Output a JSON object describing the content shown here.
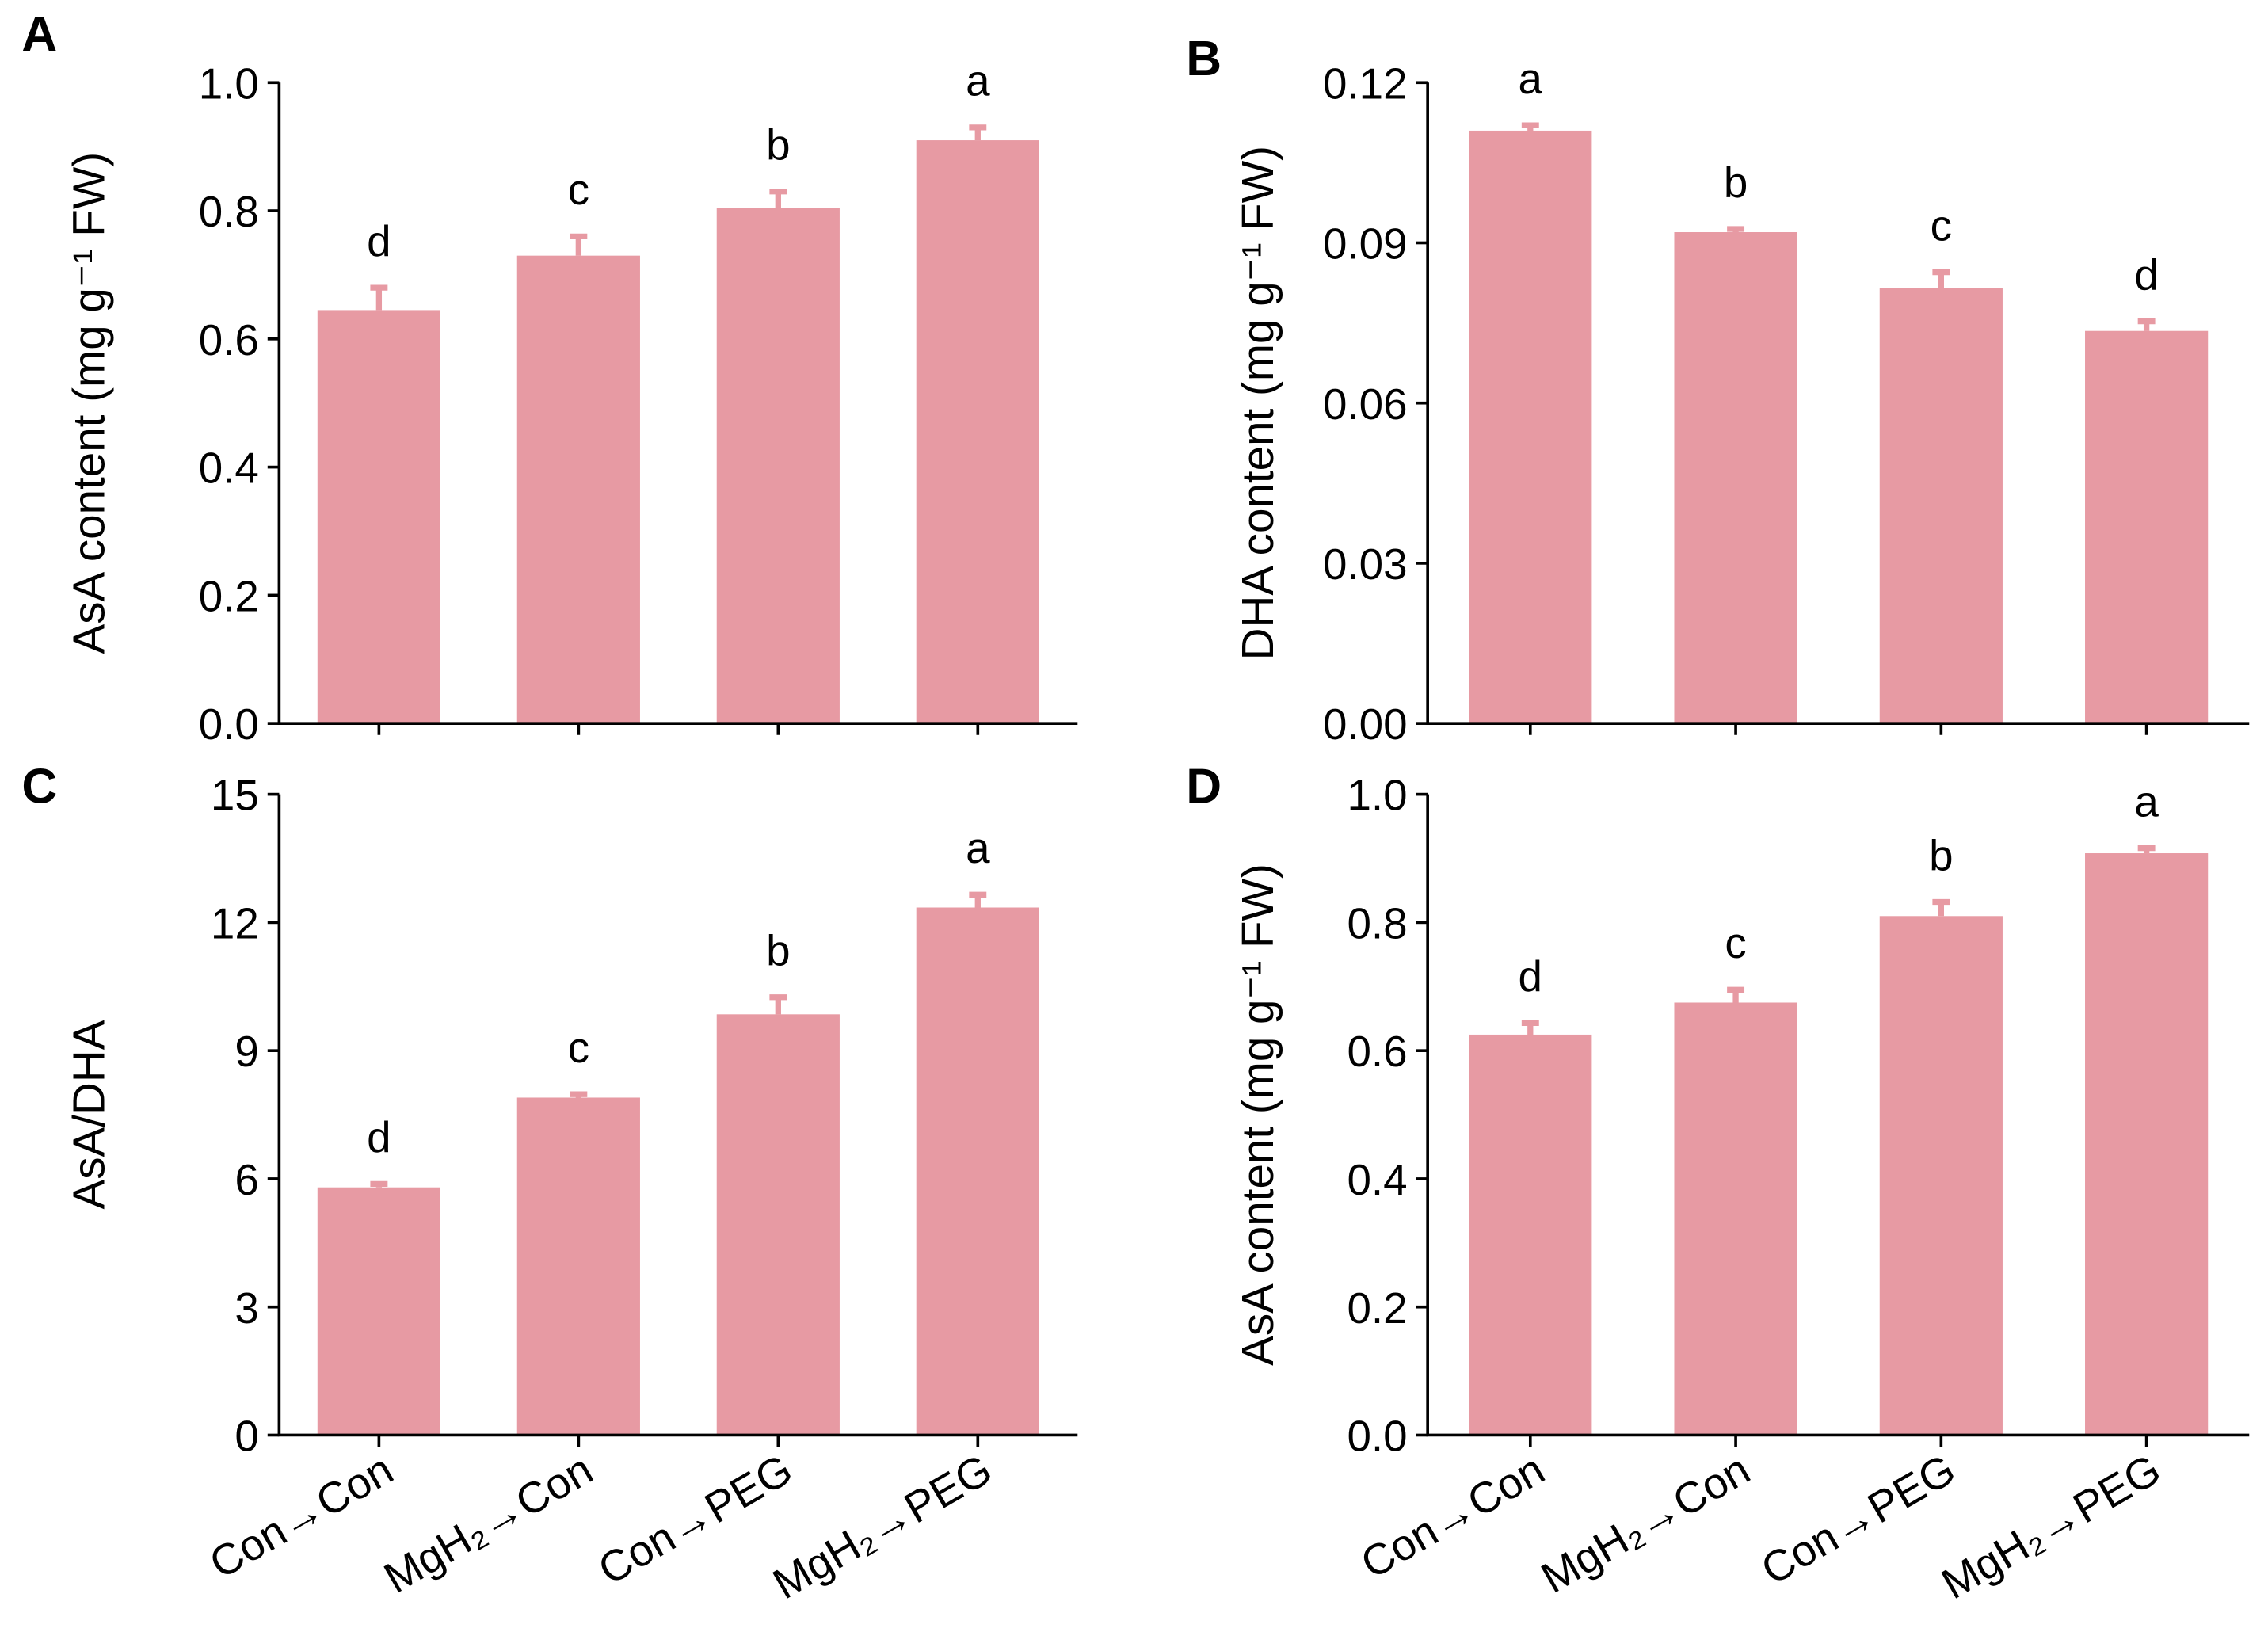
{
  "chart_data": [
    {
      "type": "bar",
      "panel": "A",
      "ylabel": "AsA content (mg g⁻¹ FW)",
      "color": "#e79aa3",
      "values": [
        0.645,
        0.73,
        0.805,
        0.91
      ],
      "errors": [
        0.035,
        0.03,
        0.025,
        0.02
      ],
      "labels": [
        "d",
        "c",
        "b",
        "a"
      ],
      "ylim": [
        0,
        1.0
      ],
      "yticks": [
        {
          "value": 0,
          "label": "0.0"
        },
        0.2,
        0.4,
        0.6,
        0.8,
        {
          "value": 1.0,
          "label": "1.0"
        }
      ]
    },
    {
      "type": "bar",
      "panel": "B",
      "ylabel": "DHA content (mg g⁻¹ FW)",
      "color": "#e79aa3",
      "values": [
        0.111,
        0.092,
        0.0815,
        0.0735
      ],
      "errors": [
        0.001,
        0.0006,
        0.003,
        0.0018
      ],
      "labels": [
        "a",
        "b",
        "c",
        "d"
      ],
      "ylim": [
        0,
        0.12
      ],
      "yticks": [
        {
          "value": 0,
          "label": "0.00"
        },
        0.03,
        0.06,
        0.09,
        0.12
      ]
    },
    {
      "type": "bar",
      "panel": "C",
      "ylabel": "AsA/DHA",
      "color": "#e79aa3",
      "categories": [
        "Con→Con",
        "MgH₂→Con",
        "Con→PEG",
        "MgH₂→PEG"
      ],
      "values": [
        5.8,
        7.9,
        9.85,
        12.35
      ],
      "errors": [
        0.08,
        0.08,
        0.4,
        0.3
      ],
      "labels": [
        "d",
        "c",
        "b",
        "a"
      ],
      "ylim": [
        0,
        15
      ],
      "yticks": [
        0,
        3,
        6,
        9,
        12,
        15
      ]
    },
    {
      "type": "bar",
      "panel": "D",
      "ylabel": "AsA content (mg g⁻¹ FW)",
      "color": "#e79aa3",
      "categories": [
        "Con→Con",
        "MgH₂→Con",
        "Con→PEG",
        "MgH₂→PEG"
      ],
      "values": [
        0.625,
        0.675,
        0.81,
        0.908
      ],
      "errors": [
        0.018,
        0.02,
        0.022,
        0.008
      ],
      "labels": [
        "d",
        "c",
        "b",
        "a"
      ],
      "ylim": [
        0,
        1.0
      ],
      "yticks": [
        {
          "value": 0,
          "label": "0.0"
        },
        0.2,
        0.4,
        0.6,
        0.8,
        {
          "value": 1.0,
          "label": "1.0"
        }
      ]
    }
  ]
}
